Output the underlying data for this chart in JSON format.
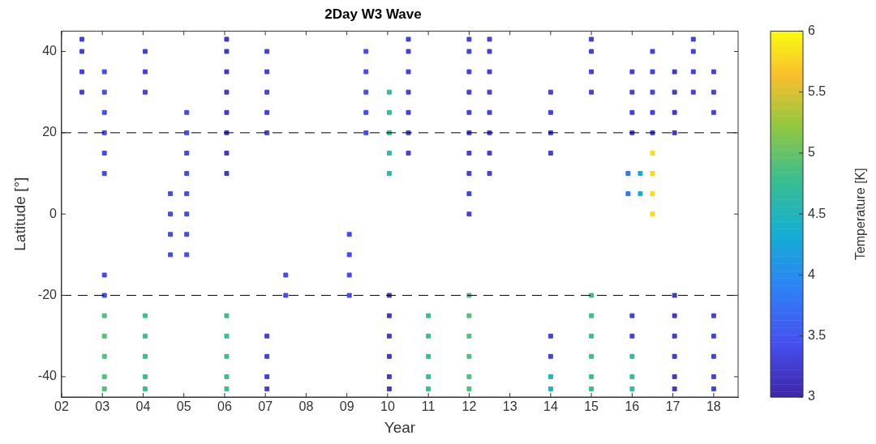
{
  "chart_data": {
    "type": "scatter",
    "title": "2Day W3 Wave",
    "xlabel": "Year",
    "ylabel": "Latitude [°]",
    "clabel": "Temperature [K]",
    "xlim": [
      2002,
      2018.6
    ],
    "xticks": [
      {
        "value": 2002,
        "label": "02"
      },
      {
        "value": 2003,
        "label": "03"
      },
      {
        "value": 2004,
        "label": "04"
      },
      {
        "value": 2005,
        "label": "05"
      },
      {
        "value": 2006,
        "label": "06"
      },
      {
        "value": 2007,
        "label": "07"
      },
      {
        "value": 2008,
        "label": "08"
      },
      {
        "value": 2009,
        "label": "09"
      },
      {
        "value": 2010,
        "label": "10"
      },
      {
        "value": 2011,
        "label": "11"
      },
      {
        "value": 2012,
        "label": "12"
      },
      {
        "value": 2013,
        "label": "13"
      },
      {
        "value": 2014,
        "label": "14"
      },
      {
        "value": 2015,
        "label": "15"
      },
      {
        "value": 2016,
        "label": "16"
      },
      {
        "value": 2017,
        "label": "17"
      },
      {
        "value": 2018,
        "label": "18"
      }
    ],
    "ylim": [
      -45,
      45
    ],
    "yticks": [
      -40,
      -20,
      0,
      20,
      40
    ],
    "clim": [
      3,
      6
    ],
    "cticks": [
      3,
      3.5,
      4,
      4.5,
      5,
      5.5,
      6
    ],
    "marker": "square",
    "grid": false,
    "legend": false,
    "ref_lines": [
      {
        "axis": "y",
        "value": 20,
        "color": "#000000",
        "line_style": "dashed"
      },
      {
        "axis": "y",
        "value": -20,
        "color": "#000000",
        "line_style": "dashed"
      }
    ],
    "x": [
      2002.5,
      2002.5,
      2002.5,
      2002.5,
      2003.05,
      2003.05,
      2003.05,
      2003.05,
      2003.05,
      2003.05,
      2003.05,
      2003.05,
      2003.05,
      2003.05,
      2003.05,
      2003.05,
      2003.05,
      2004.05,
      2004.05,
      2004.05,
      2004.05,
      2004.05,
      2004.05,
      2004.05,
      2004.05,
      2004.67,
      2004.67,
      2004.67,
      2004.67,
      2005.07,
      2005.07,
      2005.07,
      2005.07,
      2005.07,
      2005.07,
      2005.07,
      2005.07,
      2006.05,
      2006.05,
      2006.05,
      2006.05,
      2006.05,
      2006.05,
      2006.05,
      2006.05,
      2006.05,
      2006.05,
      2006.05,
      2006.05,
      2006.05,
      2007.04,
      2007.04,
      2007.04,
      2007.04,
      2007.04,
      2007.04,
      2007.04,
      2007.04,
      2007.04,
      2007.5,
      2007.5,
      2009.06,
      2009.06,
      2009.06,
      2009.06,
      2009.47,
      2009.47,
      2009.47,
      2009.47,
      2009.47,
      2010.04,
      2010.04,
      2010.04,
      2010.04,
      2010.04,
      2010.04,
      2010.04,
      2010.04,
      2010.04,
      2010.04,
      2010.04,
      2010.51,
      2010.51,
      2010.51,
      2010.51,
      2010.51,
      2010.51,
      2010.51,
      2011.0,
      2011.0,
      2011.0,
      2011.0,
      2011.0,
      2012.0,
      2012.0,
      2012.0,
      2012.0,
      2012.0,
      2012.0,
      2012.0,
      2012.0,
      2012.0,
      2012.0,
      2012.0,
      2012.0,
      2012.0,
      2012.0,
      2012.0,
      2012.0,
      2012.5,
      2012.5,
      2012.5,
      2012.5,
      2012.5,
      2012.5,
      2012.5,
      2012.5,
      2014.0,
      2014.0,
      2014.0,
      2014.0,
      2014.0,
      2014.0,
      2014.0,
      2014.0,
      2015.0,
      2015.0,
      2015.0,
      2015.0,
      2015.0,
      2015.0,
      2015.0,
      2015.0,
      2015.0,
      2015.0,
      2016.0,
      2016.0,
      2016.0,
      2016.0,
      2016.0,
      2016.0,
      2016.0,
      2016.0,
      2016.0,
      2016.5,
      2016.5,
      2016.5,
      2016.5,
      2016.5,
      2016.5,
      2016.5,
      2016.5,
      2016.5,
      2016.2,
      2016.2,
      2015.9,
      2015.9,
      2017.04,
      2017.04,
      2017.04,
      2017.04,
      2017.04,
      2017.04,
      2017.04,
      2017.04,
      2017.04,
      2017.04,
      2017.5,
      2017.5,
      2017.5,
      2017.5,
      2018.0,
      2018.0,
      2018.0,
      2018.0,
      2018.0,
      2018.0,
      2018.0,
      2018.0
    ],
    "values": [
      30,
      35,
      40,
      43,
      -43,
      -40,
      -35,
      -30,
      -25,
      -20,
      -15,
      10,
      15,
      20,
      25,
      30,
      35,
      -43,
      -40,
      -35,
      -30,
      -25,
      30,
      35,
      40,
      -10,
      -5,
      0,
      5,
      -10,
      -5,
      0,
      5,
      10,
      15,
      20,
      25,
      -43,
      -40,
      -35,
      -30,
      -25,
      10,
      15,
      20,
      25,
      30,
      35,
      40,
      43,
      -43,
      -40,
      -35,
      -30,
      20,
      25,
      30,
      35,
      40,
      -20,
      -15,
      -20,
      -15,
      -10,
      -5,
      20,
      25,
      30,
      35,
      40,
      -43,
      -40,
      -35,
      -30,
      -25,
      -20,
      10,
      15,
      20,
      25,
      30,
      15,
      20,
      25,
      30,
      35,
      40,
      43,
      -43,
      -40,
      -35,
      -30,
      -25,
      -43,
      -40,
      -35,
      -30,
      -25,
      -20,
      0,
      5,
      10,
      15,
      20,
      25,
      30,
      35,
      40,
      43,
      10,
      15,
      20,
      25,
      30,
      35,
      40,
      43,
      -43,
      -40,
      -35,
      -30,
      15,
      20,
      25,
      30,
      -43,
      -40,
      -35,
      -30,
      -25,
      -20,
      30,
      35,
      40,
      43,
      -43,
      -40,
      -35,
      -30,
      -25,
      20,
      25,
      30,
      35,
      0,
      5,
      10,
      15,
      20,
      25,
      30,
      35,
      40,
      5,
      10,
      5,
      10,
      -43,
      -40,
      -35,
      -30,
      -25,
      -20,
      20,
      25,
      30,
      35,
      30,
      35,
      40,
      43,
      -43,
      -40,
      -35,
      -30,
      -25,
      25,
      30,
      35
    ],
    "cvalues": [
      3.3,
      3.3,
      3.3,
      3.3,
      4.9,
      4.9,
      4.9,
      4.9,
      4.9,
      3.4,
      3.4,
      3.4,
      3.4,
      3.4,
      3.4,
      3.4,
      3.4,
      4.8,
      4.8,
      4.8,
      4.8,
      4.8,
      3.3,
      3.3,
      3.3,
      3.4,
      3.4,
      3.4,
      3.4,
      3.4,
      3.4,
      3.4,
      3.4,
      3.4,
      3.4,
      3.4,
      3.4,
      4.8,
      4.8,
      4.8,
      4.8,
      4.8,
      3.2,
      3.2,
      3.2,
      3.2,
      3.2,
      3.2,
      3.2,
      3.2,
      3.3,
      3.3,
      3.3,
      3.3,
      3.3,
      3.3,
      3.3,
      3.3,
      3.3,
      3.4,
      3.4,
      3.4,
      3.4,
      3.4,
      3.4,
      3.4,
      3.4,
      3.4,
      3.4,
      3.4,
      3.2,
      3.2,
      3.2,
      3.2,
      3.2,
      3.2,
      4.7,
      4.7,
      4.7,
      4.7,
      4.7,
      3.3,
      3.3,
      3.3,
      3.3,
      3.3,
      3.3,
      3.3,
      4.8,
      4.8,
      4.8,
      4.8,
      4.8,
      4.9,
      4.9,
      4.9,
      4.9,
      4.9,
      4.9,
      3.3,
      3.3,
      3.3,
      3.3,
      3.3,
      3.3,
      3.3,
      3.3,
      3.3,
      3.3,
      3.3,
      3.3,
      3.3,
      3.3,
      3.3,
      3.3,
      3.3,
      3.3,
      4.5,
      4.5,
      3.3,
      3.3,
      3.3,
      3.3,
      3.3,
      3.3,
      4.8,
      4.8,
      4.8,
      4.8,
      4.8,
      4.8,
      3.3,
      3.3,
      3.3,
      3.3,
      4.7,
      4.7,
      4.7,
      3.3,
      3.3,
      3.3,
      3.3,
      3.3,
      3.3,
      5.8,
      5.8,
      5.8,
      5.8,
      3.3,
      3.3,
      3.3,
      3.3,
      3.3,
      4.3,
      4.3,
      3.8,
      3.8,
      3.2,
      3.2,
      3.2,
      3.2,
      3.2,
      3.2,
      3.2,
      3.2,
      3.2,
      3.2,
      3.3,
      3.3,
      3.3,
      3.3,
      3.3,
      3.3,
      3.3,
      3.3,
      3.3,
      3.3,
      3.3,
      3.3
    ]
  }
}
